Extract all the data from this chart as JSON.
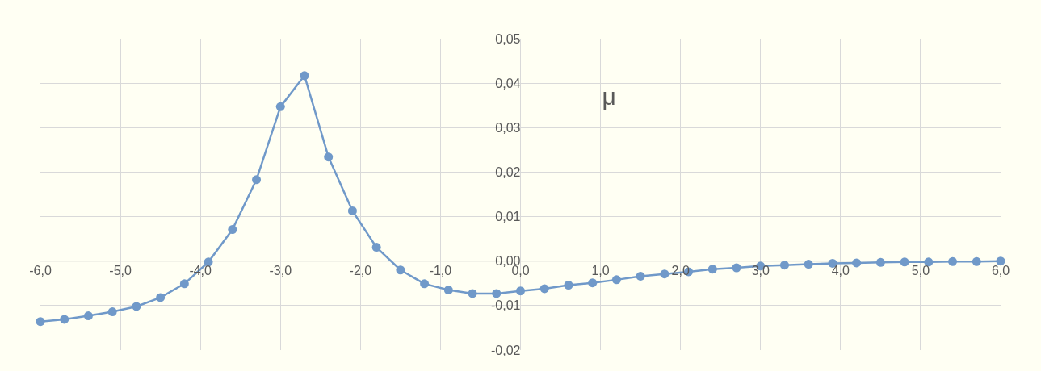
{
  "chart_data": {
    "type": "line",
    "title": "μ",
    "x": [
      -6.0,
      -5.7,
      -5.4,
      -5.1,
      -4.8,
      -4.5,
      -4.2,
      -3.9,
      -3.6,
      -3.3,
      -3.0,
      -2.7,
      -2.4,
      -2.1,
      -1.8,
      -1.5,
      -1.2,
      -0.9,
      -0.6,
      -0.3,
      0.0,
      0.3,
      0.6,
      0.9,
      1.2,
      1.5,
      1.8,
      2.1,
      2.4,
      2.7,
      3.0,
      3.3,
      3.6,
      3.9,
      4.2,
      4.5,
      4.8,
      5.1,
      5.4,
      5.7,
      6.0
    ],
    "series": [
      {
        "color": "#7099c9",
        "values": [
          -0.0136,
          -0.0131,
          -0.0123,
          -0.0114,
          -0.0102,
          -0.0082,
          -0.0051,
          -0.0002,
          0.0071,
          0.0183,
          0.0347,
          0.0417,
          0.0234,
          0.0113,
          0.0031,
          -0.002,
          -0.0051,
          -0.0065,
          -0.0073,
          -0.0073,
          -0.0067,
          -0.0062,
          -0.0054,
          -0.0049,
          -0.0042,
          -0.0034,
          -0.0029,
          -0.0024,
          -0.0018,
          -0.0015,
          -0.0011,
          -0.0009,
          -0.0007,
          -0.0005,
          -0.0004,
          -0.0003,
          -0.0002,
          -0.0002,
          -0.0001,
          -0.0001,
          0
        ]
      }
    ],
    "xlim": [
      -6,
      6
    ],
    "xticks": [
      {
        "value": -6,
        "label": "-6,0"
      },
      {
        "value": -5,
        "label": "-5,0"
      },
      {
        "value": -4,
        "label": "-4,0"
      },
      {
        "value": -3,
        "label": "-3,0"
      },
      {
        "value": -2,
        "label": "-2,0"
      },
      {
        "value": -1,
        "label": "-1,0"
      },
      {
        "value": 0,
        "label": "0,0"
      },
      {
        "value": 1,
        "label": "1,0"
      },
      {
        "value": 2,
        "label": "2,0"
      },
      {
        "value": 3,
        "label": "3,0"
      },
      {
        "value": 4,
        "label": "4,0"
      },
      {
        "value": 5,
        "label": "5,0"
      },
      {
        "value": 6,
        "label": "6,0"
      }
    ],
    "ylim": [
      -0.02,
      0.05
    ],
    "yticks": [
      {
        "value": -0.02,
        "label": "-0,02"
      },
      {
        "value": -0.01,
        "label": "-0,01"
      },
      {
        "value": 0,
        "label": "0,00"
      },
      {
        "value": 0.01,
        "label": "0,01"
      },
      {
        "value": 0.02,
        "label": "0,02"
      },
      {
        "value": 0.03,
        "label": "0,03"
      },
      {
        "value": 0.04,
        "label": "0,04"
      },
      {
        "value": 0.05,
        "label": "0,05"
      }
    ],
    "grid": true,
    "marker": "circle",
    "line_style": "solid"
  }
}
